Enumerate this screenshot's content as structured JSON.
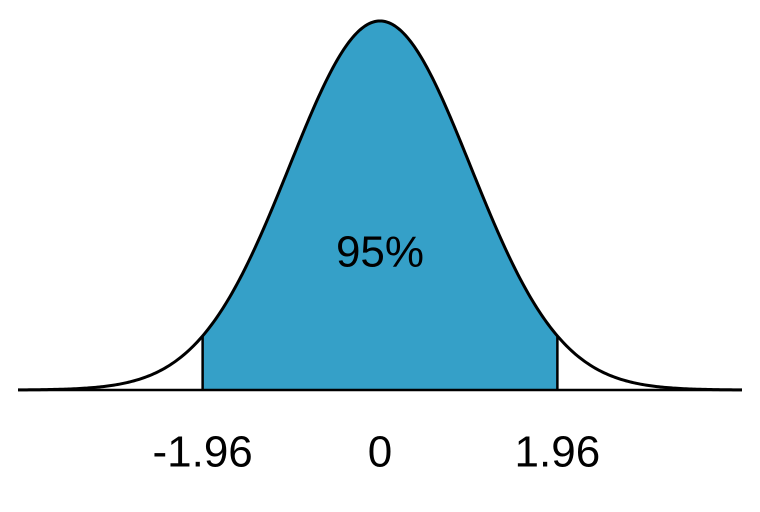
{
  "chart_data": {
    "type": "normal",
    "mean": 0,
    "sd": 1,
    "xlim": [
      -4,
      4
    ],
    "ylim": [
      0,
      0.4
    ],
    "xticks": [
      -1.96,
      0,
      1.96
    ],
    "shade": {
      "from": -1.96,
      "to": 1.96,
      "value": 95,
      "value_label": "95%",
      "color": "#35a0c8"
    }
  }
}
